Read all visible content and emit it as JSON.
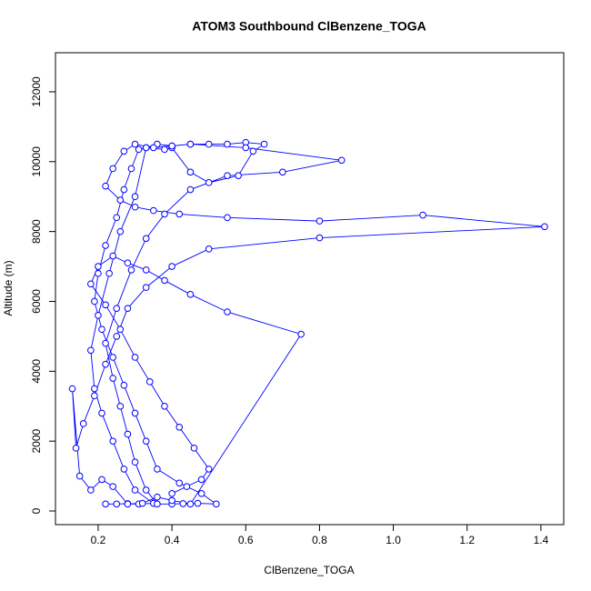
{
  "chart_data": {
    "type": "line",
    "title": "ATOM3 Southbound ClBenzene_TOGA",
    "xlabel": "ClBenzene_TOGA",
    "ylabel": "Altitude (m)",
    "color": "#0000ff",
    "markers": "circle",
    "xlim": [
      0.0843,
      1.4618
    ],
    "ylim": [
      -390,
      13118
    ],
    "xticks": [
      0.2,
      0.4,
      0.6,
      0.8,
      {
        "value": 1,
        "label": "1.0"
      },
      1.2,
      1.4
    ],
    "yticks": [
      0,
      2000,
      4000,
      6000,
      8000,
      10000,
      12000
    ],
    "series": [
      {
        "name": null,
        "color": "#0000ff",
        "x": [
          0.22,
          0.25,
          0.28,
          0.31,
          0.35,
          0.3,
          0.27,
          0.24,
          0.21,
          0.19,
          0.18,
          0.2,
          0.23,
          0.26,
          0.3,
          0.33,
          0.36,
          0.4,
          0.45,
          0.5,
          0.55,
          0.6,
          0.65,
          0.62,
          0.58,
          0.5,
          0.45,
          0.4,
          0.38,
          0.33,
          0.31,
          0.29,
          0.27,
          0.25,
          0.22,
          0.2,
          0.19,
          0.21,
          0.24,
          0.27,
          0.3,
          0.33,
          0.36,
          0.42,
          0.48,
          0.52,
          0.47,
          0.43,
          0.4,
          0.36,
          0.33,
          0.3,
          0.28,
          0.26,
          0.24,
          0.22,
          0.25,
          0.29,
          0.33,
          0.38,
          0.45,
          0.55,
          0.7,
          0.86,
          0.6,
          0.45,
          0.4,
          0.35,
          0.3,
          0.27,
          0.24,
          0.22,
          0.26,
          0.3,
          0.35,
          0.42,
          0.55,
          0.8,
          1.08,
          1.41,
          0.8,
          0.5,
          0.4,
          0.33,
          0.28,
          0.25,
          0.22,
          0.19,
          0.16,
          0.14,
          0.13,
          0.15,
          0.18,
          0.21,
          0.24,
          0.28,
          0.32,
          0.36,
          0.4,
          0.45,
          0.75,
          0.55,
          0.45,
          0.38,
          0.33,
          0.28,
          0.24,
          0.2,
          0.18,
          0.22,
          0.26,
          0.3,
          0.34,
          0.38,
          0.42,
          0.46,
          0.5,
          0.48,
          0.44,
          0.4
        ],
        "values": [
          200,
          200,
          210,
          200,
          220,
          600,
          1200,
          2000,
          2800,
          3500,
          4600,
          5600,
          6800,
          8000,
          9000,
          10400,
          10500,
          10450,
          10500,
          10500,
          10500,
          10550,
          10500,
          10300,
          9600,
          9400,
          9700,
          10400,
          10350,
          10400,
          10350,
          9800,
          9200,
          8400,
          7600,
          6800,
          6000,
          5200,
          4400,
          3600,
          2800,
          2000,
          1200,
          800,
          500,
          200,
          220,
          210,
          200,
          200,
          600,
          1400,
          2200,
          3000,
          3800,
          4800,
          5800,
          6900,
          7800,
          8500,
          9200,
          9600,
          9700,
          10040,
          10400,
          10500,
          10450,
          10400,
          10500,
          10300,
          9800,
          9300,
          8900,
          8700,
          8600,
          8500,
          8400,
          8300,
          8470,
          8140,
          7820,
          7500,
          7000,
          6400,
          5800,
          5000,
          4200,
          3300,
          2500,
          1800,
          3500,
          1000,
          600,
          900,
          700,
          200,
          220,
          400,
          300,
          200,
          5060,
          5700,
          6200,
          6600,
          6900,
          7100,
          7300,
          7000,
          6500,
          5900,
          5200,
          4400,
          3700,
          3000,
          2400,
          1800,
          1200,
          900,
          700,
          500
        ]
      }
    ]
  }
}
